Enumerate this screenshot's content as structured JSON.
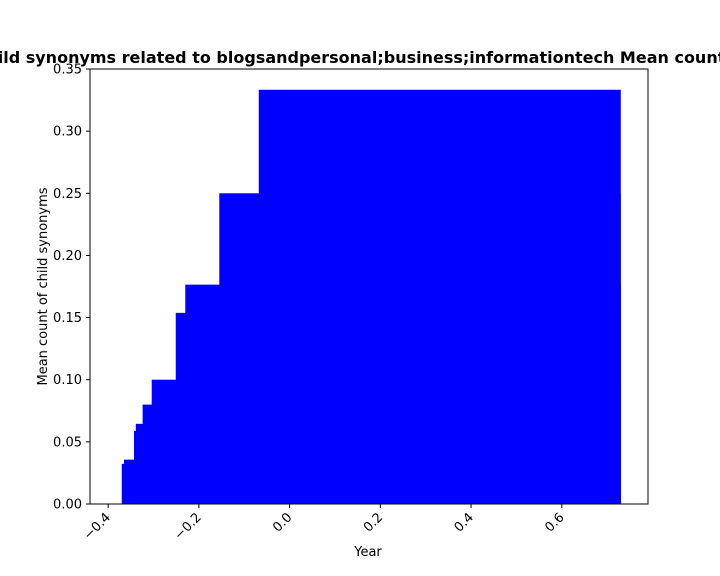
{
  "chart_data": {
    "type": "bar",
    "title": "Mean count of child synonyms related to blogsandpersonal;business;informationtech Mean count of child synonyms",
    "xlabel": "Year",
    "ylabel": "Mean count of child synonyms",
    "xlim": [
      -0.44,
      0.79
    ],
    "ylim": [
      0,
      0.35
    ],
    "xticks": [
      -0.4,
      -0.2,
      0.0,
      0.2,
      0.4,
      0.6
    ],
    "xtick_labels": [
      "−0.4",
      "−0.2",
      "0.0",
      "0.2",
      "0.4",
      "0.6"
    ],
    "yticks": [
      0.0,
      0.05,
      0.1,
      0.15,
      0.2,
      0.25,
      0.3,
      0.35
    ],
    "ytick_labels": [
      "0.00",
      "0.05",
      "0.10",
      "0.15",
      "0.20",
      "0.25",
      "0.30",
      "0.35"
    ],
    "color": "#0000ff",
    "bar_right_edge": 0.73,
    "bars": [
      {
        "x": -0.37,
        "value": 0.0323
      },
      {
        "x": -0.365,
        "value": 0.0357
      },
      {
        "x": -0.343,
        "value": 0.0588
      },
      {
        "x": -0.339,
        "value": 0.0645
      },
      {
        "x": -0.324,
        "value": 0.08
      },
      {
        "x": -0.304,
        "value": 0.1
      },
      {
        "x": -0.251,
        "value": 0.1538
      },
      {
        "x": -0.23,
        "value": 0.1765
      },
      {
        "x": -0.155,
        "value": 0.25
      },
      {
        "x": -0.068,
        "value": 0.3333
      }
    ]
  }
}
